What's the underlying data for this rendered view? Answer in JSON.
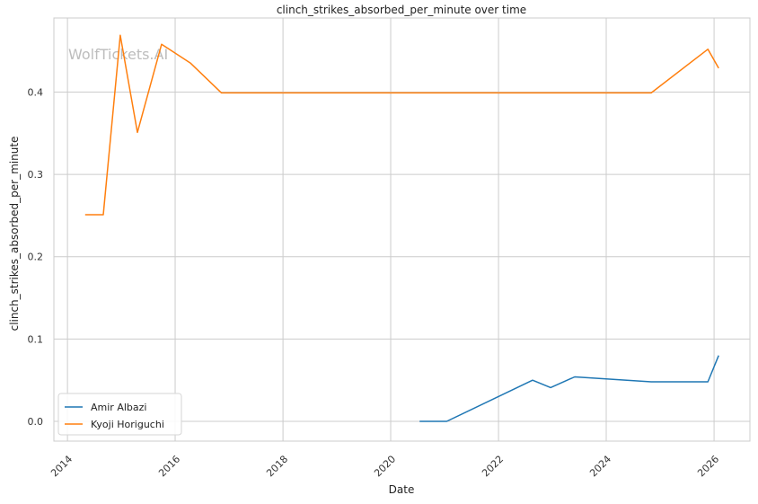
{
  "chart_data": {
    "type": "line",
    "title": "clinch_strikes_absorbed_per_minute over time",
    "xlabel": "Date",
    "ylabel": "clinch_strikes_absorbed_per_minute",
    "watermark": "WolfTickets.AI",
    "x_axis_type": "date",
    "xlim": [
      "2013-10-01",
      "2026-09-01"
    ],
    "ylim": [
      -0.024,
      0.49
    ],
    "x_ticks": [
      "2014",
      "2016",
      "2018",
      "2020",
      "2022",
      "2024",
      "2026"
    ],
    "x_tick_dates": [
      "2014-01-01",
      "2016-01-01",
      "2018-01-01",
      "2020-01-01",
      "2022-01-01",
      "2024-01-01",
      "2026-01-01"
    ],
    "y_ticks": [
      "0.0",
      "0.1",
      "0.2",
      "0.3",
      "0.4"
    ],
    "y_tick_values": [
      0.0,
      0.1,
      0.2,
      0.3,
      0.4
    ],
    "grid": true,
    "legend_position": "lower-left",
    "series": [
      {
        "name": "Amir Albazi",
        "color": "#1f77b4",
        "points": [
          {
            "x": "2020-07-15",
            "y": 0.0
          },
          {
            "x": "2021-01-15",
            "y": 0.0
          },
          {
            "x": "2022-08-20",
            "y": 0.05
          },
          {
            "x": "2022-12-20",
            "y": 0.041
          },
          {
            "x": "2023-06-01",
            "y": 0.054
          },
          {
            "x": "2024-11-01",
            "y": 0.048
          },
          {
            "x": "2025-11-20",
            "y": 0.048
          },
          {
            "x": "2026-02-01",
            "y": 0.08
          }
        ]
      },
      {
        "name": "Kyoji Horiguchi",
        "color": "#ff7f0e",
        "points": [
          {
            "x": "2014-05-01",
            "y": 0.251
          },
          {
            "x": "2014-09-01",
            "y": 0.251
          },
          {
            "x": "2014-12-25",
            "y": 0.469
          },
          {
            "x": "2015-04-20",
            "y": 0.351
          },
          {
            "x": "2015-10-01",
            "y": 0.458
          },
          {
            "x": "2016-04-15",
            "y": 0.435
          },
          {
            "x": "2016-11-10",
            "y": 0.399
          },
          {
            "x": "2024-11-01",
            "y": 0.399
          },
          {
            "x": "2025-11-20",
            "y": 0.452
          },
          {
            "x": "2026-02-01",
            "y": 0.429
          }
        ]
      }
    ]
  }
}
